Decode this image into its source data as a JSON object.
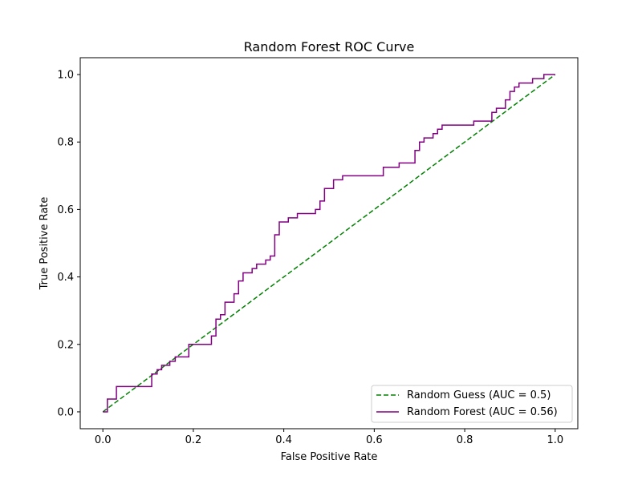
{
  "chart_data": {
    "type": "line",
    "title": "Random Forest ROC Curve",
    "xlabel": "False Positive Rate",
    "ylabel": "True Positive Rate",
    "xlim": [
      -0.05,
      1.05
    ],
    "ylim": [
      -0.05,
      1.05
    ],
    "xticks": [
      0.0,
      0.2,
      0.4,
      0.6,
      0.8,
      1.0
    ],
    "xtick_labels": [
      "0.0",
      "0.2",
      "0.4",
      "0.6",
      "0.8",
      "1.0"
    ],
    "yticks": [
      0.0,
      0.2,
      0.4,
      0.6,
      0.8,
      1.0
    ],
    "ytick_labels": [
      "0.0",
      "0.2",
      "0.4",
      "0.6",
      "0.8",
      "1.0"
    ],
    "grid": false,
    "legend_position": "lower-right",
    "series": [
      {
        "name": "Random Guess (AUC = 0.5)",
        "color": "#008000",
        "linestyle": "dashed",
        "x": [
          0.0,
          1.0
        ],
        "y": [
          0.0,
          1.0
        ]
      },
      {
        "name": "Random Forest (AUC = 0.56)",
        "color": "#800080",
        "linestyle": "solid",
        "x": [
          0.0,
          0.01,
          0.01,
          0.03,
          0.03,
          0.108,
          0.108,
          0.12,
          0.12,
          0.13,
          0.13,
          0.148,
          0.148,
          0.16,
          0.16,
          0.19,
          0.19,
          0.24,
          0.24,
          0.25,
          0.25,
          0.26,
          0.26,
          0.27,
          0.27,
          0.29,
          0.29,
          0.3,
          0.3,
          0.31,
          0.31,
          0.33,
          0.33,
          0.34,
          0.34,
          0.36,
          0.36,
          0.37,
          0.37,
          0.38,
          0.38,
          0.39,
          0.39,
          0.41,
          0.41,
          0.43,
          0.43,
          0.47,
          0.47,
          0.48,
          0.48,
          0.49,
          0.49,
          0.51,
          0.51,
          0.53,
          0.53,
          0.62,
          0.62,
          0.655,
          0.655,
          0.69,
          0.69,
          0.7,
          0.7,
          0.71,
          0.71,
          0.73,
          0.73,
          0.74,
          0.74,
          0.75,
          0.75,
          0.82,
          0.82,
          0.86,
          0.86,
          0.87,
          0.87,
          0.89,
          0.89,
          0.9,
          0.9,
          0.91,
          0.91,
          0.92,
          0.92,
          0.95,
          0.95,
          0.975,
          0.975,
          1.0
        ],
        "y": [
          0.0,
          0.0,
          0.038,
          0.038,
          0.075,
          0.075,
          0.112,
          0.112,
          0.125,
          0.125,
          0.138,
          0.138,
          0.15,
          0.15,
          0.163,
          0.163,
          0.2,
          0.2,
          0.225,
          0.225,
          0.275,
          0.275,
          0.288,
          0.288,
          0.325,
          0.325,
          0.35,
          0.35,
          0.388,
          0.388,
          0.412,
          0.412,
          0.425,
          0.425,
          0.438,
          0.438,
          0.45,
          0.45,
          0.462,
          0.462,
          0.525,
          0.525,
          0.563,
          0.563,
          0.575,
          0.575,
          0.588,
          0.588,
          0.6,
          0.6,
          0.625,
          0.625,
          0.662,
          0.662,
          0.688,
          0.688,
          0.7,
          0.7,
          0.725,
          0.725,
          0.738,
          0.738,
          0.775,
          0.775,
          0.8,
          0.8,
          0.812,
          0.812,
          0.825,
          0.825,
          0.838,
          0.838,
          0.85,
          0.85,
          0.862,
          0.862,
          0.888,
          0.888,
          0.9,
          0.9,
          0.925,
          0.925,
          0.95,
          0.95,
          0.963,
          0.963,
          0.975,
          0.975,
          0.988,
          0.988,
          1.0,
          1.0
        ]
      }
    ]
  }
}
